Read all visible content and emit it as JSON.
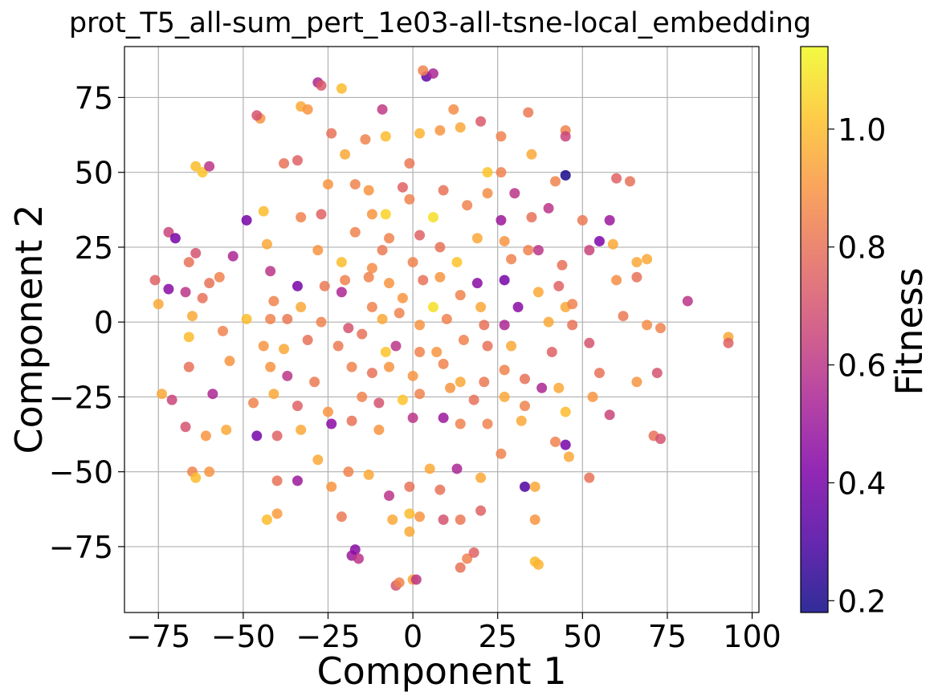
{
  "chart_data": {
    "type": "scatter",
    "title": "prot_T5_all-sum_pert_1e03-all-tsne-local_embedding",
    "xlabel": "Component 1",
    "ylabel": "Component 2",
    "xlim": [
      -85,
      102
    ],
    "ylim": [
      -97,
      92
    ],
    "xticks": [
      -75,
      -50,
      -25,
      0,
      25,
      50,
      75,
      100
    ],
    "xtick_labels": [
      "−75",
      "−50",
      "−25",
      "0",
      "25",
      "50",
      "75",
      "100"
    ],
    "yticks": [
      -75,
      -50,
      -25,
      0,
      25,
      50,
      75
    ],
    "ytick_labels": [
      "−75",
      "−50",
      "−25",
      "0",
      "25",
      "50",
      "75"
    ],
    "grid": true,
    "colorbar": {
      "label": "Fitness",
      "colormap": "plasma",
      "range": [
        0.18,
        1.14
      ],
      "ticks": [
        0.2,
        0.4,
        0.6,
        0.8,
        1.0
      ],
      "tick_labels": [
        "0.2",
        "0.4",
        "0.6",
        "0.8",
        "1.0"
      ]
    },
    "marker_alpha": 0.85,
    "points": [
      {
        "x": 4,
        "y": 82,
        "c": 0.35
      },
      {
        "x": 6,
        "y": 83,
        "c": 0.55
      },
      {
        "x": 3,
        "y": 84,
        "c": 0.85
      },
      {
        "x": -28,
        "y": 80,
        "c": 0.55
      },
      {
        "x": -27,
        "y": 79,
        "c": 0.72
      },
      {
        "x": -21,
        "y": 78,
        "c": 1.0
      },
      {
        "x": -9,
        "y": 71,
        "c": 0.62
      },
      {
        "x": -33,
        "y": 72,
        "c": 0.95
      },
      {
        "x": -31,
        "y": 71,
        "c": 0.9
      },
      {
        "x": 12,
        "y": 71,
        "c": 0.88
      },
      {
        "x": -45,
        "y": 68,
        "c": 0.9
      },
      {
        "x": -46,
        "y": 69,
        "c": 0.7
      },
      {
        "x": 34,
        "y": 70,
        "c": 0.82
      },
      {
        "x": 20,
        "y": 67,
        "c": 0.72
      },
      {
        "x": -24,
        "y": 63,
        "c": 0.8
      },
      {
        "x": -8,
        "y": 62,
        "c": 1.0
      },
      {
        "x": -14,
        "y": 61,
        "c": 0.85
      },
      {
        "x": 2,
        "y": 63,
        "c": 0.98
      },
      {
        "x": 8,
        "y": 64,
        "c": 0.9
      },
      {
        "x": 14,
        "y": 65,
        "c": 0.95
      },
      {
        "x": 26,
        "y": 62,
        "c": 0.85
      },
      {
        "x": 45,
        "y": 64,
        "c": 0.85
      },
      {
        "x": 45,
        "y": 62,
        "c": 0.65
      },
      {
        "x": 35,
        "y": 56,
        "c": 0.95
      },
      {
        "x": -20,
        "y": 56,
        "c": 0.95
      },
      {
        "x": -64,
        "y": 52,
        "c": 1.0
      },
      {
        "x": -62,
        "y": 50,
        "c": 1.02
      },
      {
        "x": -60,
        "y": 52,
        "c": 0.6
      },
      {
        "x": 45,
        "y": 49,
        "c": 0.2
      },
      {
        "x": -38,
        "y": 53,
        "c": 0.8
      },
      {
        "x": -34,
        "y": 54,
        "c": 0.75
      },
      {
        "x": -1,
        "y": 53,
        "c": 0.82
      },
      {
        "x": 22,
        "y": 50,
        "c": 1.02
      },
      {
        "x": 26,
        "y": 50,
        "c": 0.85
      },
      {
        "x": 60,
        "y": 48,
        "c": 0.75
      },
      {
        "x": 64,
        "y": 47,
        "c": 0.8
      },
      {
        "x": 42,
        "y": 47,
        "c": 0.85
      },
      {
        "x": -17,
        "y": 46,
        "c": 0.85
      },
      {
        "x": -25,
        "y": 46,
        "c": 0.9
      },
      {
        "x": -3,
        "y": 45,
        "c": 0.75
      },
      {
        "x": -13,
        "y": 44,
        "c": 0.9
      },
      {
        "x": 9,
        "y": 44,
        "c": 0.8
      },
      {
        "x": 22,
        "y": 43,
        "c": 0.88
      },
      {
        "x": 30,
        "y": 43,
        "c": 0.6
      },
      {
        "x": -1,
        "y": 41,
        "c": 0.85
      },
      {
        "x": 40,
        "y": 38,
        "c": 0.6
      },
      {
        "x": 16,
        "y": 39,
        "c": 0.85
      },
      {
        "x": -44,
        "y": 37,
        "c": 1.0
      },
      {
        "x": -49,
        "y": 34,
        "c": 0.4
      },
      {
        "x": -33,
        "y": 35,
        "c": 0.85
      },
      {
        "x": -27,
        "y": 36,
        "c": 0.75
      },
      {
        "x": -12,
        "y": 36,
        "c": 0.9
      },
      {
        "x": -8,
        "y": 36,
        "c": 1.05
      },
      {
        "x": 6,
        "y": 35,
        "c": 1.08
      },
      {
        "x": 26,
        "y": 34,
        "c": 0.5
      },
      {
        "x": 35,
        "y": 35,
        "c": 0.8
      },
      {
        "x": 50,
        "y": 34,
        "c": 0.82
      },
      {
        "x": 58,
        "y": 34,
        "c": 0.5
      },
      {
        "x": -72,
        "y": 30,
        "c": 0.65
      },
      {
        "x": -70,
        "y": 28,
        "c": 0.4
      },
      {
        "x": -53,
        "y": 22,
        "c": 0.55
      },
      {
        "x": -43,
        "y": 26,
        "c": 0.95
      },
      {
        "x": -17,
        "y": 30,
        "c": 0.85
      },
      {
        "x": -7,
        "y": 28,
        "c": 0.85
      },
      {
        "x": 2,
        "y": 29,
        "c": 0.75
      },
      {
        "x": 19,
        "y": 28,
        "c": 0.95
      },
      {
        "x": 27,
        "y": 27,
        "c": 0.9
      },
      {
        "x": 55,
        "y": 27,
        "c": 0.42
      },
      {
        "x": 59,
        "y": 26,
        "c": 0.95
      },
      {
        "x": -64,
        "y": 23,
        "c": 0.7
      },
      {
        "x": -28,
        "y": 24,
        "c": 0.9
      },
      {
        "x": -9,
        "y": 24,
        "c": 0.82
      },
      {
        "x": 8,
        "y": 25,
        "c": 0.8
      },
      {
        "x": 34,
        "y": 24,
        "c": 0.85
      },
      {
        "x": 37,
        "y": 24,
        "c": 0.6
      },
      {
        "x": 52,
        "y": 24,
        "c": 0.65
      },
      {
        "x": -66,
        "y": 20,
        "c": 0.8
      },
      {
        "x": -21,
        "y": 20,
        "c": 1.0
      },
      {
        "x": -12,
        "y": 18,
        "c": 0.88
      },
      {
        "x": 0,
        "y": 20,
        "c": 0.85
      },
      {
        "x": 13,
        "y": 20,
        "c": 1.02
      },
      {
        "x": 29,
        "y": 21,
        "c": 0.85
      },
      {
        "x": 44,
        "y": 19,
        "c": 0.8
      },
      {
        "x": 66,
        "y": 20,
        "c": 0.95
      },
      {
        "x": 69,
        "y": 21,
        "c": 0.95
      },
      {
        "x": -76,
        "y": 14,
        "c": 0.75
      },
      {
        "x": -72,
        "y": 11,
        "c": 0.45
      },
      {
        "x": -67,
        "y": 10,
        "c": 0.6
      },
      {
        "x": -60,
        "y": 13,
        "c": 0.8
      },
      {
        "x": -57,
        "y": 15,
        "c": 0.85
      },
      {
        "x": -42,
        "y": 17,
        "c": 0.6
      },
      {
        "x": -34,
        "y": 12,
        "c": 0.4
      },
      {
        "x": -26,
        "y": 12,
        "c": 0.82
      },
      {
        "x": -20,
        "y": 14,
        "c": 0.85
      },
      {
        "x": -13,
        "y": 15,
        "c": 0.85
      },
      {
        "x": -7,
        "y": 13,
        "c": 0.9
      },
      {
        "x": 3,
        "y": 14,
        "c": 0.8
      },
      {
        "x": 8,
        "y": 15,
        "c": 0.9
      },
      {
        "x": 19,
        "y": 13,
        "c": 0.45
      },
      {
        "x": 27,
        "y": 14,
        "c": 0.4
      },
      {
        "x": 37,
        "y": 10,
        "c": 0.95
      },
      {
        "x": 43,
        "y": 12,
        "c": 0.75
      },
      {
        "x": 60,
        "y": 14,
        "c": 0.88
      },
      {
        "x": 66,
        "y": 15,
        "c": 0.8
      },
      {
        "x": -75,
        "y": 6,
        "c": 0.95
      },
      {
        "x": -62,
        "y": 8,
        "c": 0.8
      },
      {
        "x": -41,
        "y": 7,
        "c": 0.85
      },
      {
        "x": -33,
        "y": 5,
        "c": 0.95
      },
      {
        "x": -21,
        "y": 10,
        "c": 0.55
      },
      {
        "x": -12,
        "y": 5,
        "c": 0.85
      },
      {
        "x": -3,
        "y": 8,
        "c": 0.9
      },
      {
        "x": 6,
        "y": 5,
        "c": 1.08
      },
      {
        "x": 14,
        "y": 9,
        "c": 0.85
      },
      {
        "x": 20,
        "y": 5,
        "c": 0.95
      },
      {
        "x": 31,
        "y": 5,
        "c": 0.45
      },
      {
        "x": 45,
        "y": 5,
        "c": 0.95
      },
      {
        "x": 47,
        "y": 6,
        "c": 0.85
      },
      {
        "x": -65,
        "y": 2,
        "c": 0.95
      },
      {
        "x": -49,
        "y": 1,
        "c": 1.0
      },
      {
        "x": -42,
        "y": 1,
        "c": 0.85
      },
      {
        "x": -37,
        "y": 1,
        "c": 0.82
      },
      {
        "x": -27,
        "y": 0,
        "c": 0.85
      },
      {
        "x": -19,
        "y": -2,
        "c": 0.7
      },
      {
        "x": -9,
        "y": 1,
        "c": 0.95
      },
      {
        "x": -4,
        "y": 3,
        "c": 0.85
      },
      {
        "x": 2,
        "y": -1,
        "c": 0.9
      },
      {
        "x": 10,
        "y": 1,
        "c": 0.85
      },
      {
        "x": 21,
        "y": -1,
        "c": 0.8
      },
      {
        "x": 27,
        "y": -1,
        "c": 0.55
      },
      {
        "x": 40,
        "y": 0,
        "c": 0.95
      },
      {
        "x": 47,
        "y": -1,
        "c": 0.8
      },
      {
        "x": 62,
        "y": 2,
        "c": 0.82
      },
      {
        "x": 69,
        "y": -1,
        "c": 0.88
      },
      {
        "x": 73,
        "y": -2,
        "c": 0.85
      },
      {
        "x": 81,
        "y": 7,
        "c": 0.6
      },
      {
        "x": 93,
        "y": -5,
        "c": 0.95
      },
      {
        "x": 93,
        "y": -7,
        "c": 0.75
      },
      {
        "x": -66,
        "y": -5,
        "c": 1.0
      },
      {
        "x": -56,
        "y": -3,
        "c": 0.85
      },
      {
        "x": -44,
        "y": -8,
        "c": 0.9
      },
      {
        "x": -38,
        "y": -9,
        "c": 0.95
      },
      {
        "x": -31,
        "y": -6,
        "c": 0.8
      },
      {
        "x": -22,
        "y": -8,
        "c": 0.82
      },
      {
        "x": -15,
        "y": -4,
        "c": 0.8
      },
      {
        "x": -8,
        "y": -10,
        "c": 1.02
      },
      {
        "x": -5,
        "y": -8,
        "c": 0.6
      },
      {
        "x": 2,
        "y": -10,
        "c": 0.85
      },
      {
        "x": 7,
        "y": -10,
        "c": 0.9
      },
      {
        "x": 15,
        "y": -6,
        "c": 0.85
      },
      {
        "x": 22,
        "y": -8,
        "c": 0.8
      },
      {
        "x": 29,
        "y": -8,
        "c": 0.95
      },
      {
        "x": 41,
        "y": -10,
        "c": 0.75
      },
      {
        "x": 52,
        "y": -7,
        "c": 0.7
      },
      {
        "x": -74,
        "y": -24,
        "c": 0.95
      },
      {
        "x": -71,
        "y": -26,
        "c": 0.65
      },
      {
        "x": -66,
        "y": -15,
        "c": 0.8
      },
      {
        "x": -59,
        "y": -24,
        "c": 0.55
      },
      {
        "x": -54,
        "y": -13,
        "c": 0.9
      },
      {
        "x": -42,
        "y": -15,
        "c": 0.9
      },
      {
        "x": -37,
        "y": -18,
        "c": 0.6
      },
      {
        "x": -29,
        "y": -20,
        "c": 0.82
      },
      {
        "x": -18,
        "y": -15,
        "c": 0.85
      },
      {
        "x": -12,
        "y": -17,
        "c": 0.8
      },
      {
        "x": -7,
        "y": -15,
        "c": 0.9
      },
      {
        "x": 0,
        "y": -18,
        "c": 0.9
      },
      {
        "x": 9,
        "y": -14,
        "c": 0.85
      },
      {
        "x": 14,
        "y": -20,
        "c": 0.95
      },
      {
        "x": 21,
        "y": -20,
        "c": 0.82
      },
      {
        "x": 27,
        "y": -16,
        "c": 0.85
      },
      {
        "x": 33,
        "y": -19,
        "c": 0.8
      },
      {
        "x": 38,
        "y": -22,
        "c": 0.55
      },
      {
        "x": 43,
        "y": -22,
        "c": 0.95
      },
      {
        "x": 55,
        "y": -17,
        "c": 0.8
      },
      {
        "x": 66,
        "y": -20,
        "c": 0.9
      },
      {
        "x": 72,
        "y": -17,
        "c": 0.7
      },
      {
        "x": -47,
        "y": -27,
        "c": 0.85
      },
      {
        "x": -41,
        "y": -24,
        "c": 0.95
      },
      {
        "x": -34,
        "y": -28,
        "c": 0.75
      },
      {
        "x": -25,
        "y": -30,
        "c": 0.9
      },
      {
        "x": -15,
        "y": -25,
        "c": 0.85
      },
      {
        "x": -10,
        "y": -27,
        "c": 0.7
      },
      {
        "x": -3,
        "y": -26,
        "c": 1.02
      },
      {
        "x": 2,
        "y": -24,
        "c": 0.85
      },
      {
        "x": 11,
        "y": -22,
        "c": 0.9
      },
      {
        "x": 18,
        "y": -26,
        "c": 0.8
      },
      {
        "x": 27,
        "y": -25,
        "c": 0.95
      },
      {
        "x": 33,
        "y": -28,
        "c": 0.85
      },
      {
        "x": 45,
        "y": -30,
        "c": 1.0
      },
      {
        "x": 53,
        "y": -25,
        "c": 0.9
      },
      {
        "x": 58,
        "y": -31,
        "c": 0.65
      },
      {
        "x": -67,
        "y": -35,
        "c": 0.7
      },
      {
        "x": -61,
        "y": -38,
        "c": 0.9
      },
      {
        "x": -55,
        "y": -36,
        "c": 0.95
      },
      {
        "x": -46,
        "y": -38,
        "c": 0.4
      },
      {
        "x": -40,
        "y": -38,
        "c": 0.75
      },
      {
        "x": -33,
        "y": -36,
        "c": 0.95
      },
      {
        "x": -24,
        "y": -34,
        "c": 0.45
      },
      {
        "x": -18,
        "y": -33,
        "c": 0.8
      },
      {
        "x": -10,
        "y": -36,
        "c": 0.9
      },
      {
        "x": 0,
        "y": -32,
        "c": 0.6
      },
      {
        "x": 9,
        "y": -32,
        "c": 0.5
      },
      {
        "x": 14,
        "y": -34,
        "c": 0.85
      },
      {
        "x": 22,
        "y": -34,
        "c": 0.85
      },
      {
        "x": 32,
        "y": -33,
        "c": 0.95
      },
      {
        "x": 42,
        "y": -40,
        "c": 0.85
      },
      {
        "x": 45,
        "y": -41,
        "c": 0.4
      },
      {
        "x": 71,
        "y": -38,
        "c": 0.8
      },
      {
        "x": 73,
        "y": -39,
        "c": 0.7
      },
      {
        "x": -65,
        "y": -50,
        "c": 0.85
      },
      {
        "x": -60,
        "y": -50,
        "c": 0.9
      },
      {
        "x": -64,
        "y": -52,
        "c": 1.0
      },
      {
        "x": -40,
        "y": -53,
        "c": 0.8
      },
      {
        "x": -34,
        "y": -53,
        "c": 0.5
      },
      {
        "x": -28,
        "y": -46,
        "c": 0.95
      },
      {
        "x": -24,
        "y": -55,
        "c": 0.9
      },
      {
        "x": -19,
        "y": -50,
        "c": 0.85
      },
      {
        "x": -13,
        "y": -51,
        "c": 0.95
      },
      {
        "x": -7,
        "y": -58,
        "c": 0.6
      },
      {
        "x": -1,
        "y": -55,
        "c": 0.8
      },
      {
        "x": 5,
        "y": -49,
        "c": 0.95
      },
      {
        "x": 8,
        "y": -56,
        "c": 0.8
      },
      {
        "x": 13,
        "y": -49,
        "c": 0.55
      },
      {
        "x": 20,
        "y": -52,
        "c": 0.95
      },
      {
        "x": 26,
        "y": -44,
        "c": 0.85
      },
      {
        "x": 33,
        "y": -55,
        "c": 0.3
      },
      {
        "x": 36,
        "y": -55,
        "c": 0.95
      },
      {
        "x": 46,
        "y": -45,
        "c": 0.95
      },
      {
        "x": 52,
        "y": -52,
        "c": 0.8
      },
      {
        "x": -43,
        "y": -66,
        "c": 1.0
      },
      {
        "x": -40,
        "y": -64,
        "c": 0.92
      },
      {
        "x": -21,
        "y": -65,
        "c": 0.82
      },
      {
        "x": -6,
        "y": -66,
        "c": 0.95
      },
      {
        "x": -1,
        "y": -64,
        "c": 1.0
      },
      {
        "x": 2,
        "y": -65,
        "c": 0.9
      },
      {
        "x": -1,
        "y": -70,
        "c": 0.95
      },
      {
        "x": 9,
        "y": -66,
        "c": 0.7
      },
      {
        "x": 14,
        "y": -66,
        "c": 0.82
      },
      {
        "x": 20,
        "y": -63,
        "c": 0.75
      },
      {
        "x": 36,
        "y": -66,
        "c": 0.9
      },
      {
        "x": -18,
        "y": -78,
        "c": 0.5
      },
      {
        "x": -17,
        "y": -76,
        "c": 0.45
      },
      {
        "x": -16,
        "y": -79,
        "c": 0.6
      },
      {
        "x": -5,
        "y": -88,
        "c": 0.7
      },
      {
        "x": -4,
        "y": -87,
        "c": 0.85
      },
      {
        "x": 0,
        "y": -86,
        "c": 0.95
      },
      {
        "x": 1,
        "y": -86,
        "c": 0.6
      },
      {
        "x": 14,
        "y": -82,
        "c": 0.8
      },
      {
        "x": 16,
        "y": -79,
        "c": 0.85
      },
      {
        "x": 18,
        "y": -77,
        "c": 0.75
      },
      {
        "x": 36,
        "y": -80,
        "c": 1.0
      },
      {
        "x": 37,
        "y": -81,
        "c": 0.98
      }
    ]
  }
}
